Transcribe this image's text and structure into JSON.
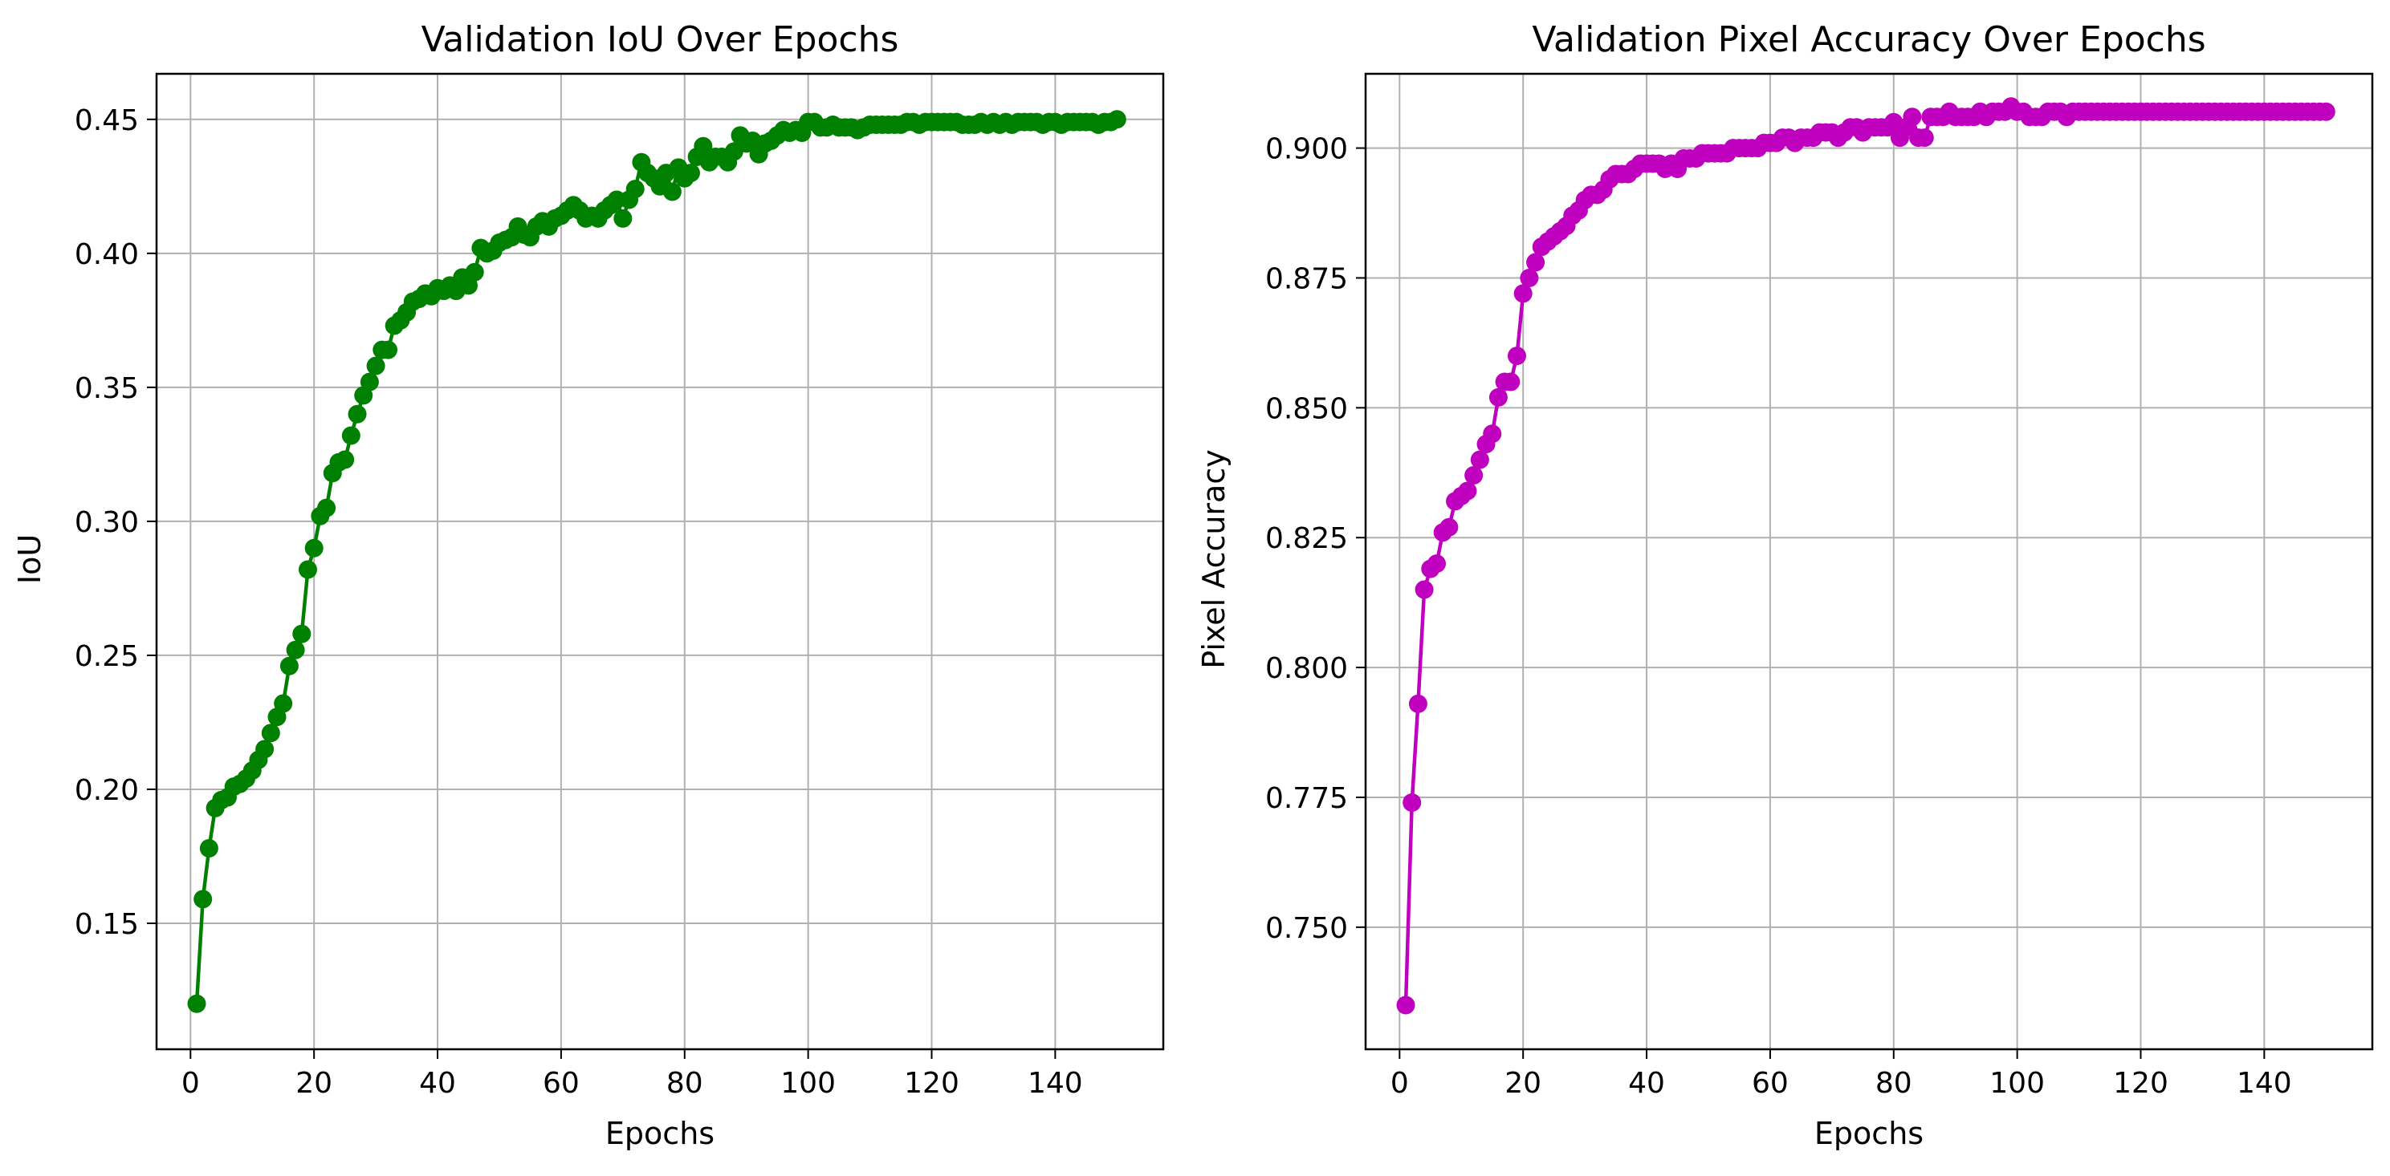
{
  "chart_data": [
    {
      "type": "line",
      "title": "Validation IoU Over Epochs",
      "xlabel": "Epochs",
      "ylabel": "IoU",
      "xlim": [
        -5.5,
        157.5
      ],
      "ylim": [
        0.103,
        0.467
      ],
      "xticks": [
        0,
        20,
        40,
        60,
        80,
        100,
        120,
        140
      ],
      "yticks": [
        0.15,
        0.2,
        0.25,
        0.3,
        0.35,
        0.4,
        0.45
      ],
      "grid": true,
      "color": "#008000",
      "x": [
        1,
        2,
        3,
        4,
        5,
        6,
        7,
        8,
        9,
        10,
        11,
        12,
        13,
        14,
        15,
        16,
        17,
        18,
        19,
        20,
        21,
        22,
        23,
        24,
        25,
        26,
        27,
        28,
        29,
        30,
        31,
        32,
        33,
        34,
        35,
        36,
        37,
        38,
        39,
        40,
        41,
        42,
        43,
        44,
        45,
        46,
        47,
        48,
        49,
        50,
        51,
        52,
        53,
        54,
        55,
        56,
        57,
        58,
        59,
        60,
        61,
        62,
        63,
        64,
        65,
        66,
        67,
        68,
        69,
        70,
        71,
        72,
        73,
        74,
        75,
        76,
        77,
        78,
        79,
        80,
        81,
        82,
        83,
        84,
        85,
        86,
        87,
        88,
        89,
        90,
        91,
        92,
        93,
        94,
        95,
        96,
        97,
        98,
        99,
        100,
        101,
        102,
        103,
        104,
        105,
        106,
        107,
        108,
        109,
        110,
        111,
        112,
        113,
        114,
        115,
        116,
        117,
        118,
        119,
        120,
        121,
        122,
        123,
        124,
        125,
        126,
        127,
        128,
        129,
        130,
        131,
        132,
        133,
        134,
        135,
        136,
        137,
        138,
        139,
        140,
        141,
        142,
        143,
        144,
        145,
        146,
        147,
        148,
        149,
        150
      ],
      "series": [
        {
          "values": [
            0.12,
            0.159,
            0.178,
            0.193,
            0.196,
            0.197,
            0.201,
            0.202,
            0.204,
            0.207,
            0.211,
            0.215,
            0.221,
            0.227,
            0.232,
            0.246,
            0.252,
            0.258,
            0.282,
            0.29,
            0.302,
            0.305,
            0.318,
            0.322,
            0.323,
            0.332,
            0.34,
            0.347,
            0.352,
            0.358,
            0.364,
            0.364,
            0.373,
            0.375,
            0.378,
            0.382,
            0.383,
            0.385,
            0.384,
            0.387,
            0.386,
            0.388,
            0.386,
            0.391,
            0.388,
            0.393,
            0.402,
            0.4,
            0.401,
            0.404,
            0.405,
            0.406,
            0.41,
            0.407,
            0.406,
            0.41,
            0.412,
            0.41,
            0.413,
            0.414,
            0.416,
            0.418,
            0.416,
            0.413,
            0.414,
            0.413,
            0.416,
            0.418,
            0.42,
            0.413,
            0.42,
            0.424,
            0.434,
            0.43,
            0.428,
            0.425,
            0.43,
            0.423,
            0.432,
            0.428,
            0.43,
            0.436,
            0.44,
            0.434,
            0.436,
            0.436,
            0.434,
            0.438,
            0.444,
            0.441,
            0.442,
            0.437,
            0.441,
            0.442,
            0.444,
            0.446,
            0.445,
            0.446,
            0.445,
            0.449,
            0.449,
            0.447,
            0.447,
            0.448,
            0.447,
            0.447,
            0.447,
            0.446,
            0.447,
            0.448,
            0.448,
            0.448,
            0.448,
            0.448,
            0.448,
            0.449,
            0.449,
            0.448,
            0.449,
            0.449,
            0.449,
            0.449,
            0.449,
            0.449,
            0.448,
            0.448,
            0.448,
            0.449,
            0.448,
            0.449,
            0.448,
            0.449,
            0.448,
            0.449,
            0.449,
            0.449,
            0.449,
            0.448,
            0.449,
            0.449,
            0.448,
            0.449,
            0.449,
            0.449,
            0.449,
            0.449,
            0.448,
            0.449,
            0.449,
            0.45
          ]
        }
      ]
    },
    {
      "type": "line",
      "title": "Validation Pixel Accuracy Over Epochs",
      "xlabel": "Epochs",
      "ylabel": "Pixel Accuracy",
      "xlim": [
        -5.5,
        157.5
      ],
      "ylim": [
        0.7265,
        0.9143
      ],
      "xticks": [
        0,
        20,
        40,
        60,
        80,
        100,
        120,
        140
      ],
      "yticks": [
        0.75,
        0.775,
        0.8,
        0.825,
        0.85,
        0.875,
        0.9
      ],
      "grid": true,
      "color": "#bf00bf",
      "x": [
        1,
        2,
        3,
        4,
        5,
        6,
        7,
        8,
        9,
        10,
        11,
        12,
        13,
        14,
        15,
        16,
        17,
        18,
        19,
        20,
        21,
        22,
        23,
        24,
        25,
        26,
        27,
        28,
        29,
        30,
        31,
        32,
        33,
        34,
        35,
        36,
        37,
        38,
        39,
        40,
        41,
        42,
        43,
        44,
        45,
        46,
        47,
        48,
        49,
        50,
        51,
        52,
        53,
        54,
        55,
        56,
        57,
        58,
        59,
        60,
        61,
        62,
        63,
        64,
        65,
        66,
        67,
        68,
        69,
        70,
        71,
        72,
        73,
        74,
        75,
        76,
        77,
        78,
        79,
        80,
        81,
        82,
        83,
        84,
        85,
        86,
        87,
        88,
        89,
        90,
        91,
        92,
        93,
        94,
        95,
        96,
        97,
        98,
        99,
        100,
        101,
        102,
        103,
        104,
        105,
        106,
        107,
        108,
        109,
        110,
        111,
        112,
        113,
        114,
        115,
        116,
        117,
        118,
        119,
        120,
        121,
        122,
        123,
        124,
        125,
        126,
        127,
        128,
        129,
        130,
        131,
        132,
        133,
        134,
        135,
        136,
        137,
        138,
        139,
        140,
        141,
        142,
        143,
        144,
        145,
        146,
        147,
        148,
        149,
        150
      ],
      "series": [
        {
          "values": [
            0.735,
            0.774,
            0.793,
            0.815,
            0.819,
            0.82,
            0.826,
            0.827,
            0.832,
            0.833,
            0.834,
            0.837,
            0.84,
            0.843,
            0.845,
            0.852,
            0.855,
            0.855,
            0.86,
            0.872,
            0.875,
            0.878,
            0.881,
            0.882,
            0.883,
            0.884,
            0.885,
            0.887,
            0.888,
            0.89,
            0.891,
            0.891,
            0.892,
            0.894,
            0.895,
            0.895,
            0.895,
            0.896,
            0.897,
            0.897,
            0.897,
            0.897,
            0.896,
            0.897,
            0.896,
            0.898,
            0.898,
            0.898,
            0.899,
            0.899,
            0.899,
            0.899,
            0.899,
            0.9,
            0.9,
            0.9,
            0.9,
            0.9,
            0.901,
            0.901,
            0.901,
            0.902,
            0.902,
            0.901,
            0.902,
            0.902,
            0.902,
            0.903,
            0.903,
            0.903,
            0.902,
            0.903,
            0.904,
            0.904,
            0.903,
            0.904,
            0.904,
            0.904,
            0.904,
            0.905,
            0.902,
            0.904,
            0.906,
            0.902,
            0.902,
            0.906,
            0.906,
            0.906,
            0.907,
            0.906,
            0.906,
            0.906,
            0.906,
            0.907,
            0.906,
            0.907,
            0.907,
            0.907,
            0.908,
            0.907,
            0.907,
            0.906,
            0.906,
            0.906,
            0.907,
            0.907,
            0.907,
            0.906,
            0.907,
            0.907,
            0.907,
            0.907,
            0.907,
            0.907,
            0.907,
            0.907,
            0.907,
            0.907,
            0.907,
            0.907,
            0.907,
            0.907,
            0.907,
            0.907,
            0.907,
            0.907,
            0.907,
            0.907,
            0.907,
            0.907,
            0.907,
            0.907,
            0.907,
            0.907,
            0.907,
            0.907,
            0.907,
            0.907,
            0.907,
            0.907,
            0.907,
            0.907,
            0.907,
            0.907,
            0.907,
            0.907,
            0.907,
            0.907,
            0.907,
            0.907
          ]
        }
      ]
    }
  ]
}
